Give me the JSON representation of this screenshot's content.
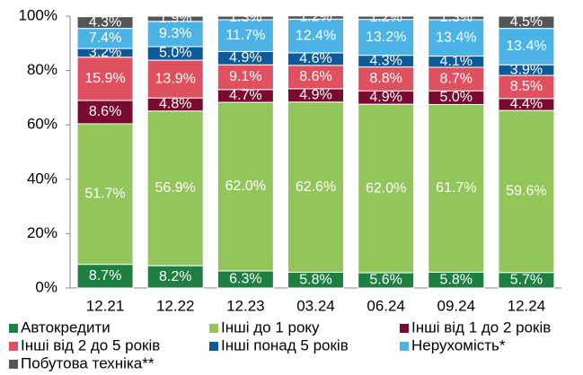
{
  "chart_data": {
    "type": "stacked_bar",
    "categories": [
      "12.21",
      "12.22",
      "12.23",
      "03.24",
      "06.24",
      "09.24",
      "12.24"
    ],
    "series": [
      {
        "name": "Автокредити",
        "color": "#1e8040",
        "values": [
          8.7,
          8.2,
          6.3,
          5.8,
          5.6,
          5.8,
          5.7
        ],
        "value_labels": [
          "8.7%",
          "8.2%",
          "6.3%",
          "5.8%",
          "5.6%",
          "5.8%",
          "5.7%"
        ]
      },
      {
        "name": "Інші до 1 року",
        "color": "#92c55a",
        "values": [
          51.7,
          56.9,
          62.0,
          62.6,
          62.0,
          61.7,
          59.6
        ],
        "value_labels": [
          "51.7%",
          "56.9%",
          "62.0%",
          "62.6%",
          "62.0%",
          "61.7%",
          "59.6%"
        ]
      },
      {
        "name": "Інші від 1 до 2 років",
        "color": "#7b0a30",
        "values": [
          8.6,
          4.8,
          4.7,
          4.9,
          4.9,
          5.0,
          4.4
        ],
        "value_labels": [
          "8.6%",
          "4.8%",
          "4.7%",
          "4.9%",
          "4.9%",
          "5.0%",
          "4.4%"
        ]
      },
      {
        "name": "Інші від 2 до 5 років",
        "color": "#e0505e",
        "values": [
          15.9,
          13.9,
          9.1,
          8.6,
          8.8,
          8.7,
          8.5
        ],
        "value_labels": [
          "15.9%",
          "13.9%",
          "9.1%",
          "8.6%",
          "8.8%",
          "8.7%",
          "8.5%"
        ]
      },
      {
        "name": "Інші понад 5 років",
        "color": "#0b5a9a",
        "values": [
          3.2,
          5.0,
          4.9,
          4.6,
          4.3,
          4.1,
          3.9
        ],
        "value_labels": [
          "3.2%",
          "5.0%",
          "4.9%",
          "4.6%",
          "4.3%",
          "4.1%",
          "3.9%"
        ]
      },
      {
        "name": "Нерухомість*",
        "color": "#4cb3e6",
        "values": [
          7.4,
          9.3,
          11.7,
          12.4,
          13.2,
          13.4,
          13.4
        ],
        "value_labels": [
          "7.4%",
          "9.3%",
          "11.7%",
          "12.4%",
          "13.2%",
          "13.4%",
          "13.4%"
        ]
      },
      {
        "name": "Побутова техніка**",
        "color": "#555555",
        "values": [
          4.3,
          1.9,
          1.3,
          1.2,
          1.2,
          1.3,
          4.5
        ],
        "value_labels": [
          "4.3%",
          "1.9%",
          "1.3%",
          "1.2%",
          "1.2%",
          "1.3%",
          "4.5%"
        ]
      }
    ],
    "ylim": [
      0,
      100
    ],
    "yticks": [
      {
        "value": 0,
        "label": "0%"
      },
      {
        "value": 20,
        "label": "20%"
      },
      {
        "value": 40,
        "label": "40%"
      },
      {
        "value": 60,
        "label": "60%"
      },
      {
        "value": 80,
        "label": "80%"
      },
      {
        "value": 100,
        "label": "100%"
      }
    ],
    "legend": "bottom",
    "grid": false
  }
}
